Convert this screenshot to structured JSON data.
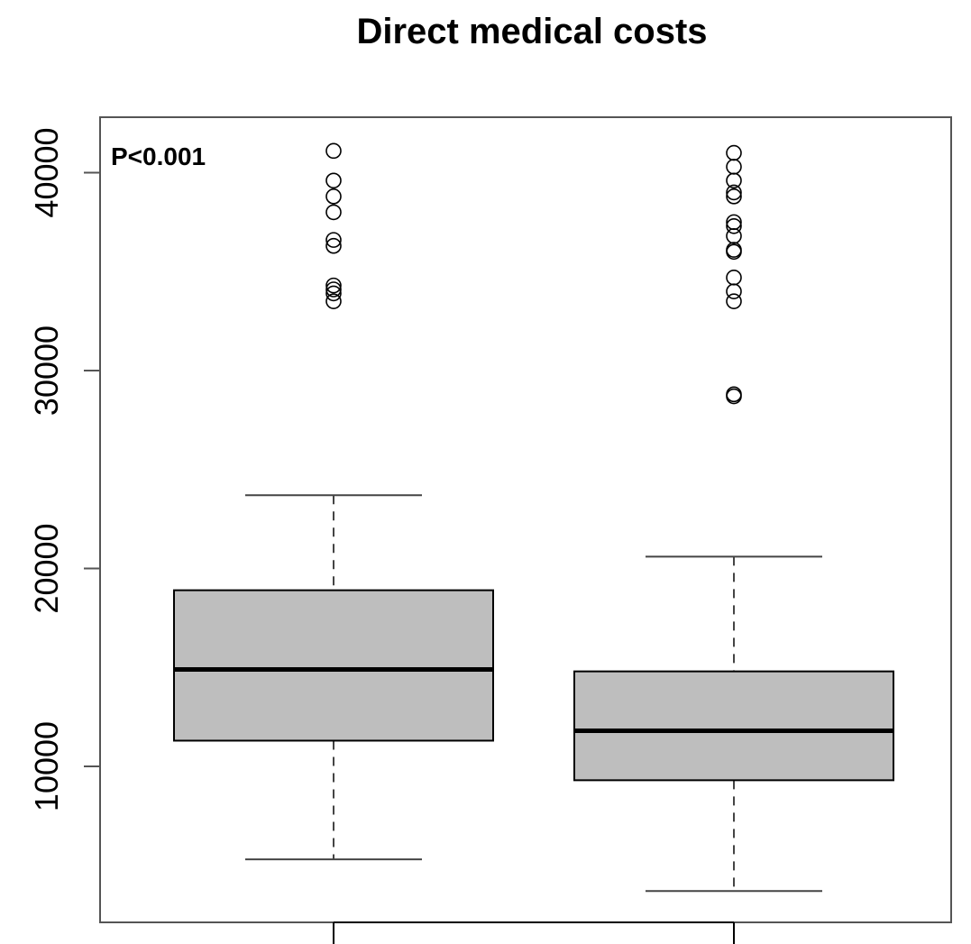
{
  "chart_data": {
    "type": "box",
    "title": "Direct medical costs",
    "xlabel": "",
    "ylabel": "",
    "ylim": [
      2000,
      42500
    ],
    "yticks": [
      10000,
      20000,
      30000,
      40000
    ],
    "yticklabels": [
      "10000",
      "20000",
      "30000",
      "40000"
    ],
    "grid": false,
    "annotation": "P<0.001",
    "groups": [
      {
        "whisker_low": 5300,
        "q1": 11300,
        "median": 14900,
        "q3": 18900,
        "whisker_high": 23700,
        "outliers": [
          33500,
          33900,
          34100,
          34300,
          36300,
          36600,
          38000,
          38800,
          39600,
          41100
        ]
      },
      {
        "whisker_low": 3700,
        "q1": 9300,
        "median": 11800,
        "q3": 14800,
        "whisker_high": 20600,
        "outliers": [
          28700,
          28800,
          33500,
          34000,
          34700,
          36000,
          36100,
          36800,
          37300,
          37500,
          38800,
          39000,
          39600,
          40300,
          41000
        ]
      }
    ],
    "colors": {
      "box_fill": "#bebebe",
      "stroke": "#000000",
      "whisker": "#444444",
      "frame": "#555555"
    }
  }
}
